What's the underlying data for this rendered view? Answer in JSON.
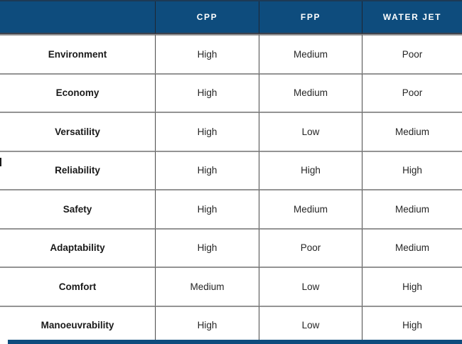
{
  "table": {
    "columns": [
      "",
      "CPP",
      "FPP",
      "WATER JET"
    ],
    "rows": [
      {
        "label": "Environment",
        "values": [
          "High",
          "Medium",
          "Poor"
        ]
      },
      {
        "label": "Economy",
        "values": [
          "High",
          "Medium",
          "Poor"
        ]
      },
      {
        "label": "Versatility",
        "values": [
          "High",
          "Low",
          "Medium"
        ]
      },
      {
        "label": "Reliability",
        "values": [
          "High",
          "High",
          "High"
        ]
      },
      {
        "label": "Safety",
        "values": [
          "High",
          "Medium",
          "Medium"
        ]
      },
      {
        "label": "Adaptability",
        "values": [
          "High",
          "Poor",
          "Medium"
        ]
      },
      {
        "label": "Comfort",
        "values": [
          "Medium",
          "Low",
          "High"
        ]
      },
      {
        "label": "Manoeuvrability",
        "values": [
          "High",
          "Low",
          "High"
        ]
      }
    ]
  },
  "colors": {
    "header_bg": "#0e4c7d",
    "header_text": "#ffffff",
    "row_line": "#949494",
    "column_line": "#4a4a4a",
    "header_edge": "#3a414d",
    "label_color": "#1a1a1a",
    "value_color": "#262626",
    "bottom_bar": "#0e4c7d"
  }
}
